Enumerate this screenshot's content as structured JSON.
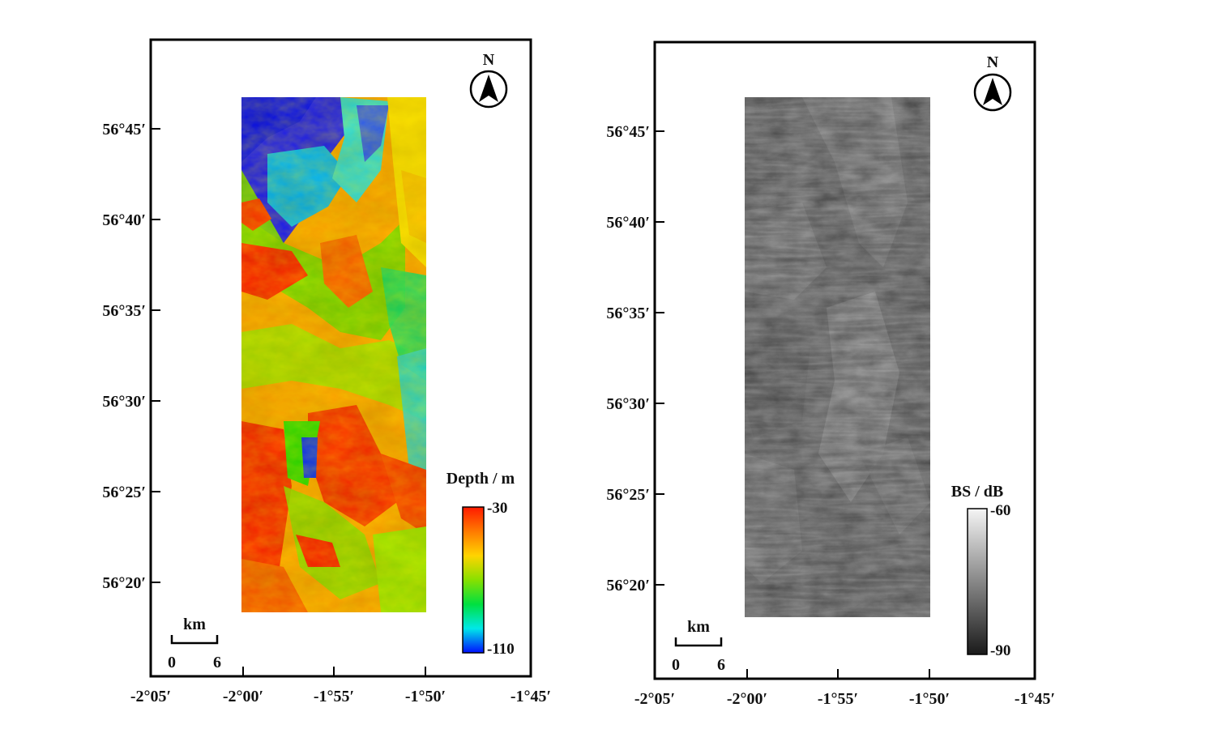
{
  "maps": [
    {
      "id": "bathymetry",
      "lat_ticks": [
        "56°45′",
        "56°40′",
        "56°35′",
        "56°30′",
        "56°25′",
        "56°20′"
      ],
      "lon_ticks": [
        "-2°05′",
        "-2°00′",
        "-1°55′",
        "-1°50′",
        "-1°45′"
      ],
      "north_label": "N",
      "scale": {
        "unit": "km",
        "start": "0",
        "end": "6"
      },
      "colorbar": {
        "title": "Depth / m",
        "max_label": "-30",
        "min_label": "-110",
        "colors": [
          "#ff1a00",
          "#ff7a00",
          "#ffd400",
          "#88e000",
          "#00e040",
          "#00e8e8",
          "#0010ff"
        ]
      }
    },
    {
      "id": "backscatter",
      "lat_ticks": [
        "56°45′",
        "56°40′",
        "56°35′",
        "56°30′",
        "56°25′",
        "56°20′"
      ],
      "lon_ticks": [
        "-2°05′",
        "-2°00′",
        "-1°55′",
        "-1°50′",
        "-1°45′"
      ],
      "north_label": "N",
      "scale": {
        "unit": "km",
        "start": "0",
        "end": "6"
      },
      "colorbar": {
        "title": "BS / dB",
        "max_label": "-60",
        "min_label": "-90",
        "colors": [
          "#f5f5f5",
          "#1a1a1a"
        ]
      }
    }
  ]
}
